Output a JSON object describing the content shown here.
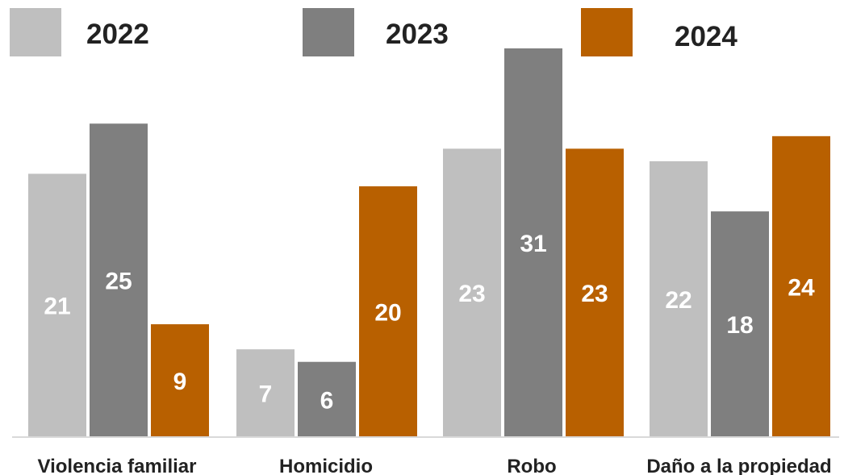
{
  "chart_data": {
    "type": "bar",
    "categories": [
      "Violencia familiar",
      "Homicidio",
      "Robo",
      "Daño a la propiedad"
    ],
    "series": [
      {
        "name": "2022",
        "color": "#bfbfbf",
        "values": [
          21,
          7,
          23,
          22
        ]
      },
      {
        "name": "2023",
        "color": "#7f7f7f",
        "values": [
          25,
          6,
          31,
          18
        ]
      },
      {
        "name": "2024",
        "color": "#b86000",
        "values": [
          9,
          20,
          23,
          24
        ]
      }
    ],
    "title": "",
    "xlabel": "",
    "ylabel": "",
    "ylim": [
      0,
      31
    ],
    "grid": false,
    "legend": "top",
    "data_labels": true
  }
}
